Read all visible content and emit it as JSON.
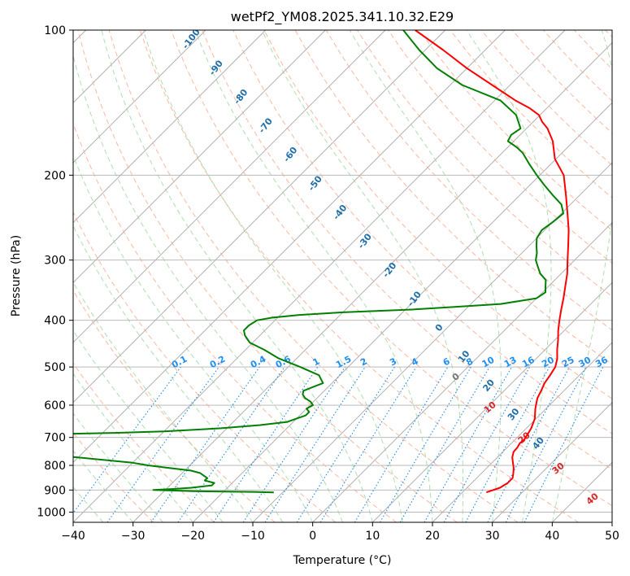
{
  "chart_data": {
    "type": "line",
    "title": "wetPf2_YM08.2025.341.10.32.E29",
    "xlabel": "Temperature (°C)",
    "ylabel": "Pressure (hPa)",
    "xlim": [
      -40,
      50
    ],
    "ylim": [
      1050,
      100
    ],
    "x_ticks": [
      "−40",
      "−30",
      "−20",
      "−10",
      "0",
      "10",
      "20",
      "30",
      "40",
      "50"
    ],
    "x_tick_values": [
      -40,
      -30,
      -20,
      -10,
      0,
      10,
      20,
      30,
      40,
      50
    ],
    "y_ticks": [
      "100",
      "200",
      "300",
      "400",
      "500",
      "600",
      "700",
      "800",
      "900",
      "1000"
    ],
    "y_tick_values": [
      100,
      200,
      300,
      400,
      500,
      600,
      700,
      800,
      900,
      1000
    ],
    "series": [
      {
        "name": "Temperature",
        "color": "#ff0000",
        "p": [
          910,
          890,
          870,
          850,
          830,
          810,
          790,
          770,
          750,
          735,
          720,
          705,
          690,
          670,
          640,
          610,
          580,
          560,
          540,
          520,
          500,
          480,
          460,
          440,
          420,
          400,
          380,
          360,
          340,
          320,
          300,
          280,
          260,
          240,
          220,
          200,
          185,
          170,
          160,
          155,
          150,
          145,
          140,
          130,
          120,
          110,
          100
        ],
        "t": [
          24,
          25.5,
          26,
          26,
          25.3,
          24.5,
          23.5,
          22.5,
          21.8,
          21.7,
          21.4,
          21.5,
          21.2,
          20.8,
          19.8,
          18.2,
          16.8,
          16.2,
          15.5,
          15.1,
          14.6,
          13.5,
          12.0,
          10.6,
          9.0,
          7.5,
          6.0,
          4.5,
          2.8,
          1.0,
          -1.2,
          -3.5,
          -6.0,
          -9.0,
          -12.3,
          -16.0,
          -20.2,
          -23.5,
          -26.5,
          -28.5,
          -30.2,
          -33,
          -36.5,
          -43,
          -50,
          -57,
          -65
        ]
      },
      {
        "name": "Dewpoint",
        "color": "#008000",
        "p": [
          910,
          908,
          905,
          900,
          895,
          890,
          880,
          870,
          860,
          850,
          840,
          830,
          820,
          810,
          800,
          790,
          780,
          770,
          765,
          760,
          740,
          720,
          715,
          710,
          700,
          690,
          688,
          685,
          680,
          670,
          660,
          650,
          640,
          630,
          620,
          610,
          600,
          590,
          580,
          570,
          560,
          550,
          540,
          520,
          500,
          480,
          460,
          445,
          430,
          420,
          410,
          400,
          395,
          390,
          385,
          380,
          375,
          370,
          360,
          350,
          340,
          330,
          320,
          310,
          300,
          290,
          280,
          270,
          260,
          250,
          240,
          230,
          220,
          210,
          200,
          190,
          180,
          175,
          170,
          165,
          160,
          150,
          140,
          130,
          120,
          110,
          100
        ],
        "t": [
          -11.5,
          -15,
          -25,
          -32,
          -28.5,
          -26,
          -23,
          -23,
          -25,
          -25,
          -26,
          -27,
          -29,
          -33,
          -37,
          -40,
          -45,
          -50,
          -53,
          -55,
          -59,
          -63,
          -64,
          -64,
          -62,
          -58,
          -55,
          -48,
          -40,
          -31,
          -25,
          -21,
          -20,
          -19,
          -19,
          -20,
          -19.5,
          -20.5,
          -22,
          -23,
          -23.5,
          -22.5,
          -21.5,
          -23.5,
          -28,
          -33,
          -37,
          -40.5,
          -42.5,
          -43.5,
          -43.5,
          -43,
          -41,
          -37,
          -30,
          -19,
          -12,
          -5,
          0,
          0.5,
          -0.5,
          -1.5,
          -3.5,
          -5,
          -6.5,
          -7.5,
          -8.8,
          -10,
          -10.5,
          -10,
          -9.7,
          -11.5,
          -14.5,
          -17.5,
          -20.5,
          -23.5,
          -26.5,
          -28.5,
          -31,
          -31.5,
          -31,
          -34,
          -39,
          -48,
          -55,
          -61,
          -67
        ]
      }
    ],
    "dry_adiabat_labels": [
      "-100",
      "-90",
      "-80",
      "-70",
      "-60",
      "-50",
      "-40",
      "-30",
      "-20",
      "-10",
      "0",
      "10",
      "20",
      "30",
      "40"
    ],
    "mixing_ratio_labels": [
      "0.1",
      "0.2",
      "0.4",
      "0.6",
      "1",
      "1.5",
      "2",
      "3",
      "4",
      "6",
      "8",
      "10",
      "13",
      "16",
      "20",
      "25",
      "30",
      "36"
    ],
    "moist_adiabat_labels": [
      "0",
      "10",
      "20",
      "30",
      "40"
    ],
    "colors": {
      "isotherm": "#a8a8a8",
      "isobar": "#b0b0b0",
      "dry_adiabat": "#f7a58a",
      "moist_adiabat": "#8fcf8f",
      "mixing_ratio": "#1e88e5",
      "temperature": "#ff0000",
      "dewpoint": "#008000"
    }
  }
}
